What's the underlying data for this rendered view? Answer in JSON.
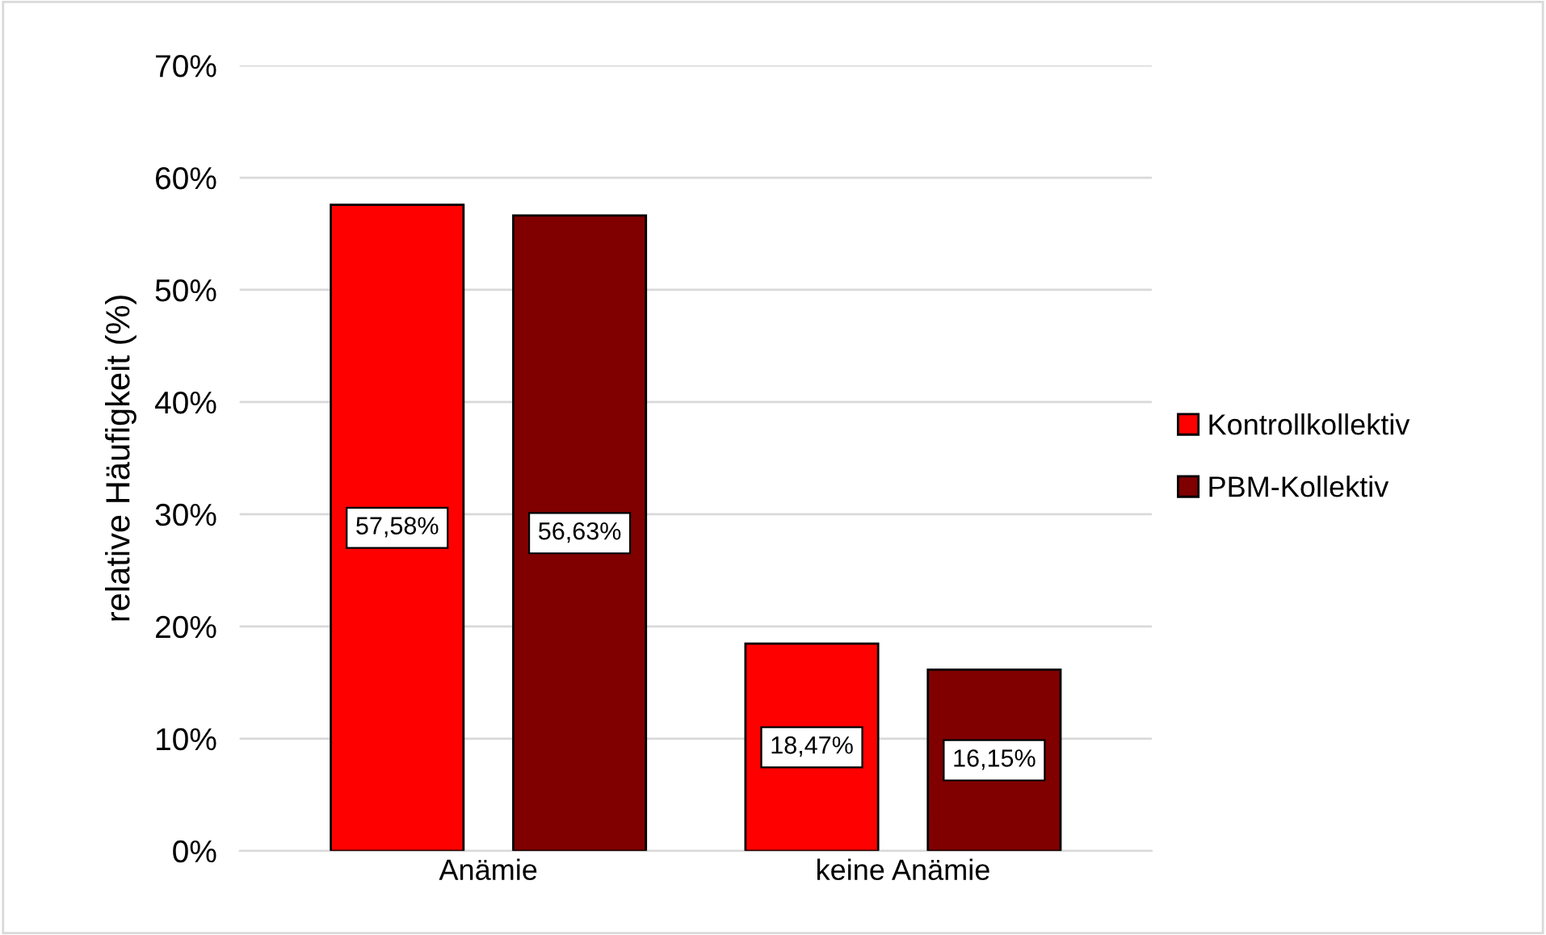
{
  "chart_data": {
    "type": "bar",
    "ylabel": "relative Häufigkeit (%)",
    "categories": [
      "Anämie",
      "keine Anämie"
    ],
    "series": [
      {
        "name": "Kontrollkollektiv",
        "color": "#ff0000",
        "values": [
          57.58,
          18.47
        ],
        "value_labels": [
          "57,58%",
          "18,47%"
        ]
      },
      {
        "name": "PBM-Kollektiv",
        "color": "#800000",
        "values": [
          56.63,
          16.15
        ],
        "value_labels": [
          "56,63%",
          "16,15%"
        ]
      }
    ],
    "ylim": [
      0,
      70
    ],
    "yticks": [
      {
        "value": 0,
        "label": "0%"
      },
      {
        "value": 10,
        "label": "10%"
      },
      {
        "value": 20,
        "label": "20%"
      },
      {
        "value": 30,
        "label": "30%"
      },
      {
        "value": 40,
        "label": "40%"
      },
      {
        "value": 50,
        "label": "50%"
      },
      {
        "value": 60,
        "label": "60%"
      },
      {
        "value": 70,
        "label": "70%"
      }
    ],
    "grid": "y",
    "legend": "right"
  }
}
